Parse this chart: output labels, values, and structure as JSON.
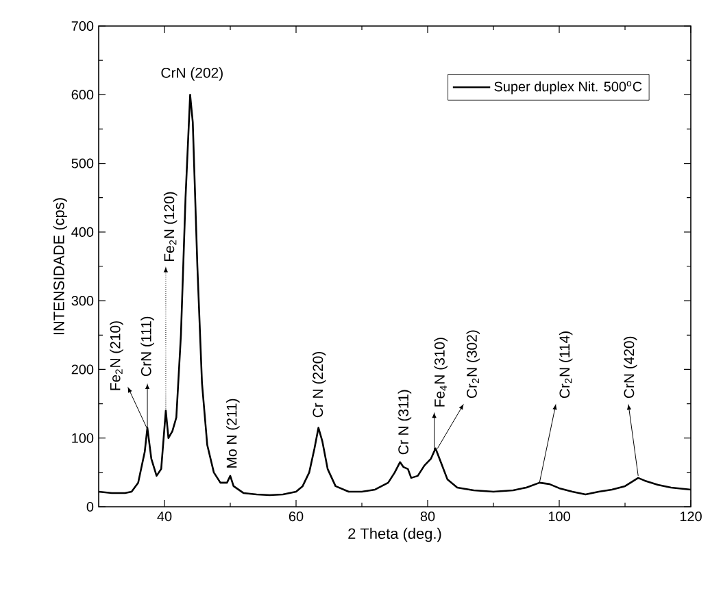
{
  "chart_data": {
    "type": "line",
    "xlabel": "2 Theta (deg.)",
    "ylabel": "INTENSIDADE (cps)",
    "xlim": [
      30,
      120
    ],
    "ylim": [
      0,
      700
    ],
    "xticks": [
      40,
      60,
      80,
      100,
      120
    ],
    "yticks": [
      0,
      100,
      200,
      300,
      400,
      500,
      600,
      700
    ],
    "legend": "top right",
    "grid": false,
    "marker": "none",
    "line_style": "solid",
    "series": [
      {
        "name": "Super duplex Nit. 500$^{o}$C",
        "color": "#000000",
        "x": [
          30,
          32,
          34,
          35,
          36,
          37,
          37.4,
          38,
          38.8,
          39.5,
          40.2,
          40.6,
          41.2,
          41.8,
          42.5,
          43.2,
          43.9,
          44.3,
          45,
          45.7,
          46.5,
          47.5,
          48.5,
          49.5,
          50,
          50.5,
          52,
          54,
          56,
          58,
          60,
          61,
          62,
          62.8,
          63.4,
          64,
          64.8,
          66,
          68,
          70,
          72,
          74,
          75,
          75.8,
          76.3,
          77,
          77.5,
          78.5,
          79.5,
          80.5,
          81.2,
          82,
          83,
          84.5,
          87,
          90,
          93,
          95,
          97,
          98.5,
          100,
          102,
          104,
          106,
          108,
          110,
          112,
          113,
          115,
          117,
          120
        ],
        "values": [
          22,
          20,
          20,
          22,
          35,
          80,
          115,
          70,
          45,
          55,
          140,
          100,
          110,
          130,
          250,
          450,
          600,
          560,
          350,
          180,
          90,
          50,
          35,
          35,
          45,
          30,
          20,
          18,
          17,
          18,
          22,
          30,
          50,
          85,
          115,
          95,
          55,
          30,
          22,
          22,
          25,
          35,
          50,
          65,
          58,
          55,
          42,
          45,
          60,
          70,
          85,
          65,
          40,
          28,
          24,
          22,
          24,
          28,
          35,
          33,
          27,
          22,
          18,
          22,
          25,
          30,
          42,
          38,
          32,
          28,
          25
        ]
      }
    ],
    "annotations": [
      {
        "text": "CrN (202)",
        "x": 44,
        "y": 600
      },
      {
        "text": "Fe$_{2}$N (210)",
        "x": 37.3,
        "y": 115
      },
      {
        "text": "CrN (111)",
        "x": 37.4,
        "y": 115
      },
      {
        "text": "Fe$_{2}$N (120)",
        "x": 40.2,
        "y": 140
      },
      {
        "text": "Mo N (211)",
        "x": 50,
        "y": 45
      },
      {
        "text": "Cr N (220)",
        "x": 63.4,
        "y": 115
      },
      {
        "text": "Cr N (311)",
        "x": 76,
        "y": 65
      },
      {
        "text": "Fe$_{4}$N  (310)",
        "x": 81,
        "y": 80
      },
      {
        "text": "Cr$_{2}$N  (302)",
        "x": 81.5,
        "y": 85
      },
      {
        "text": "Cr$_{2}$N  (114)",
        "x": 97,
        "y": 35
      },
      {
        "text": "CrN  (420)",
        "x": 112,
        "y": 45
      }
    ]
  }
}
